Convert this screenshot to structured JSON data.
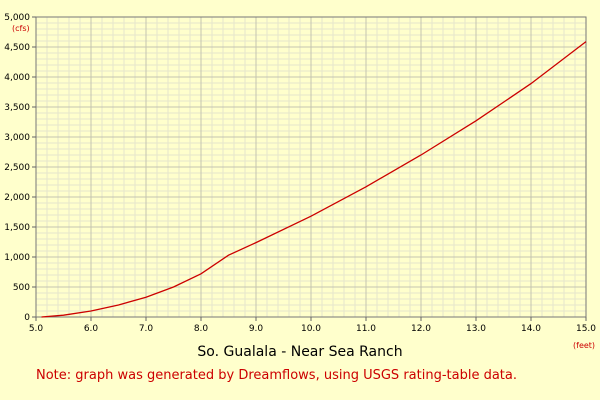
{
  "chart_data": {
    "type": "line",
    "title": "So. Gualala - Near Sea Ranch",
    "x_unit": "(feet)",
    "y_unit": "(cfs)",
    "xlim": [
      5.0,
      15.0
    ],
    "ylim": [
      0,
      5000
    ],
    "x_ticks": [
      5.0,
      6.0,
      7.0,
      8.0,
      9.0,
      10.0,
      11.0,
      12.0,
      13.0,
      14.0,
      15.0
    ],
    "x_tick_labels": [
      "5.0",
      "6.0",
      "7.0",
      "8.0",
      "9.0",
      "10.0",
      "11.0",
      "12.0",
      "13.0",
      "14.0",
      "15.0"
    ],
    "y_ticks": [
      0,
      500,
      1000,
      1500,
      2000,
      2500,
      3000,
      3500,
      4000,
      4500,
      5000
    ],
    "y_tick_labels": [
      "0",
      "500",
      "1,000",
      "1,500",
      "2,000",
      "2,500",
      "3,000",
      "3,500",
      "4,000",
      "4,500",
      "5,000"
    ],
    "grid": true,
    "series": [
      {
        "color": "#cc0000",
        "x": [
          5.1,
          5.5,
          6.0,
          6.5,
          7.0,
          7.5,
          8.0,
          8.5,
          9.0,
          10.0,
          11.0,
          12.0,
          13.0,
          14.0,
          15.0
        ],
        "y": [
          0,
          30,
          100,
          200,
          330,
          500,
          720,
          1030,
          1240,
          1680,
          2170,
          2700,
          3270,
          3890,
          4590
        ]
      }
    ]
  },
  "note": "Note: graph was generated by Dreamflows, using USGS rating-table data."
}
